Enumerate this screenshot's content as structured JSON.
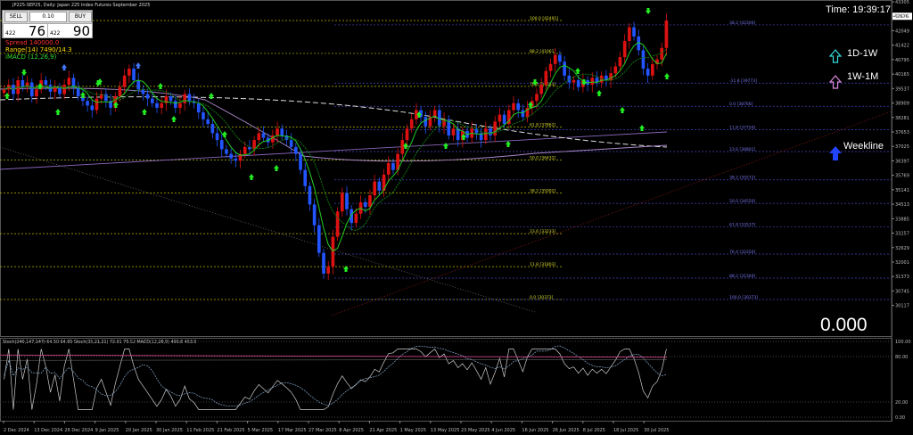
{
  "header": {
    "title": "JP225-SEP25, Daily:  Japan 225 Index Futures September 2025",
    "sell_label": "SELL",
    "buy_label": "BUY",
    "lot": "0.10",
    "sell_small": "422",
    "sell_big": "76",
    "buy_small": "422",
    "buy_big": "90"
  },
  "indicators": {
    "spread": "Spread 140000.0",
    "range": "Range(14) 7490/14.3",
    "macd": "iMACD (12,26,9)"
  },
  "overlay": {
    "time": "Time: 19:39:17",
    "tf1": "1D-1W",
    "tf2": "1W-1M",
    "weekline": "Weekline",
    "value": "0.000"
  },
  "colors": {
    "bull": "#dd1111",
    "bear": "#2255ff",
    "fib_yellow": "#b8b800",
    "fib_blue": "#4444bb",
    "ma_fast": "#22cc22",
    "ma_slow": "#117711",
    "signal_up": "#22ee22",
    "signal_blue": "#4477ff",
    "purple": "#9966cc",
    "pink": "#cc4488"
  },
  "chart_data": {
    "type": "candlestick",
    "symbol": "JP225-SEP25",
    "timeframe": "Daily",
    "ylim": [
      29600,
      43305
    ],
    "yticks": [
      43305,
      42676,
      42049,
      41422,
      40795,
      40165,
      39537,
      38909,
      38281,
      37653,
      37025,
      36397,
      35769,
      35141,
      34513,
      33885,
      33257,
      32629,
      32001,
      31373,
      30745,
      30117
    ],
    "current_price": 42676,
    "xticks": [
      "2 Dec 2024",
      "13 Dec 2024",
      "26 Dec 2024",
      "9 Jan 2025",
      "20 Jan 2025",
      "30 Jan 2025",
      "11 Feb 2025",
      "21 Feb 2025",
      "5 Mar 2025",
      "17 Mar 2025",
      "27 Mar 2025",
      "8 Apr 2025",
      "21 Apr 2025",
      "1 May 2025",
      "13 May 2025",
      "23 May 2025",
      "4 Jun 2025",
      "16 Jun 2025",
      "26 Jun 2025",
      "8 Jul 2025",
      "18 Jul 2025",
      "30 Jul 2025"
    ],
    "fib_levels": [
      {
        "label": "100.0 [42491]",
        "price": 42491,
        "set": "yellow"
      },
      {
        "label": "88.2 [41061]",
        "price": 41061,
        "set": "yellow"
      },
      {
        "label": "76.4 [39633]",
        "price": 39633,
        "set": "yellow"
      },
      {
        "label": "61.8 [37862]",
        "price": 37862,
        "set": "yellow"
      },
      {
        "label": "50.0 [36432]",
        "price": 36432,
        "set": "yellow"
      },
      {
        "label": "38.2 [35002]",
        "price": 35002,
        "set": "yellow"
      },
      {
        "label": "23.6 [33233]",
        "price": 33233,
        "set": "yellow"
      },
      {
        "label": "11.8 [31803]",
        "price": 31803,
        "set": "yellow"
      },
      {
        "label": "0.0 [30373]",
        "price": 30373,
        "set": "yellow"
      },
      {
        "label": "38.2 [42300]",
        "price": 42300,
        "set": "blue"
      },
      {
        "label": "-11.8 [39773]",
        "price": 39773,
        "set": "blue"
      },
      {
        "label": "0.0 [38766]",
        "price": 38766,
        "set": "blue"
      },
      {
        "label": "11.8 [37750]",
        "price": 37750,
        "set": "blue"
      },
      {
        "label": "23.6 [36801]",
        "price": 36801,
        "set": "blue"
      },
      {
        "label": "38.2 [35572]",
        "price": 35572,
        "set": "blue"
      },
      {
        "label": "50.0 [34550]",
        "price": 34550,
        "set": "blue"
      },
      {
        "label": "61.8 [33537]",
        "price": 33537,
        "set": "blue"
      },
      {
        "label": "76.4 [32350]",
        "price": 32350,
        "set": "blue"
      },
      {
        "label": "88.2 [31304]",
        "price": 31304,
        "set": "blue"
      },
      {
        "label": "100.0 [30373]",
        "price": 30373,
        "set": "blue"
      }
    ],
    "close_path": [
      39500,
      39700,
      39300,
      39900,
      39600,
      39800,
      39200,
      39500,
      39900,
      39700,
      39400,
      39600,
      39300,
      39700,
      40000,
      39600,
      39200,
      39000,
      38800,
      38600,
      39100,
      39300,
      39000,
      38700,
      39200,
      39600,
      40100,
      40400,
      39900,
      39500,
      39300,
      39100,
      38900,
      38700,
      38900,
      39200,
      39000,
      38700,
      38900,
      39300,
      39000,
      38900,
      38500,
      38200,
      38000,
      37600,
      37300,
      36900,
      36700,
      36500,
      36400,
      36700,
      37000,
      36900,
      37300,
      37600,
      37400,
      37200,
      37500,
      37800,
      37500,
      37300,
      37000,
      36700,
      36000,
      35300,
      34500,
      33600,
      32400,
      31500,
      31800,
      33100,
      34200,
      35000,
      34300,
      33700,
      34100,
      34600,
      34400,
      34900,
      35500,
      35100,
      35800,
      36300,
      36000,
      36700,
      37300,
      37800,
      38200,
      38600,
      38300,
      37900,
      38300,
      38600,
      37900,
      38200,
      37500,
      37800,
      37300,
      37700,
      37400,
      37800,
      37600,
      37300,
      37800,
      37500,
      38100,
      38400,
      38000,
      38600,
      38900,
      38600,
      38300,
      38700,
      39000,
      39300,
      39700,
      40300,
      40600,
      41000,
      40700,
      40100,
      39800,
      39900,
      39600,
      39900,
      39700,
      40000,
      39800,
      40100,
      39900,
      40200,
      40500,
      40900,
      41600,
      42200,
      41800,
      41200,
      40400,
      40100,
      40600,
      40800,
      41300,
      42491
    ],
    "oscillator": {
      "label": "Stoch(240,147,147) 64.50 64.65 Stoch(35,21,21) 72.01 75.52 MACD(12,26,9) 496.8 453.9",
      "ylim": [
        0,
        100
      ],
      "yticks": [
        100,
        80,
        20,
        0
      ],
      "ytick_labels": [
        "100.00",
        "80.00",
        "20.00",
        "0.00"
      ]
    }
  }
}
